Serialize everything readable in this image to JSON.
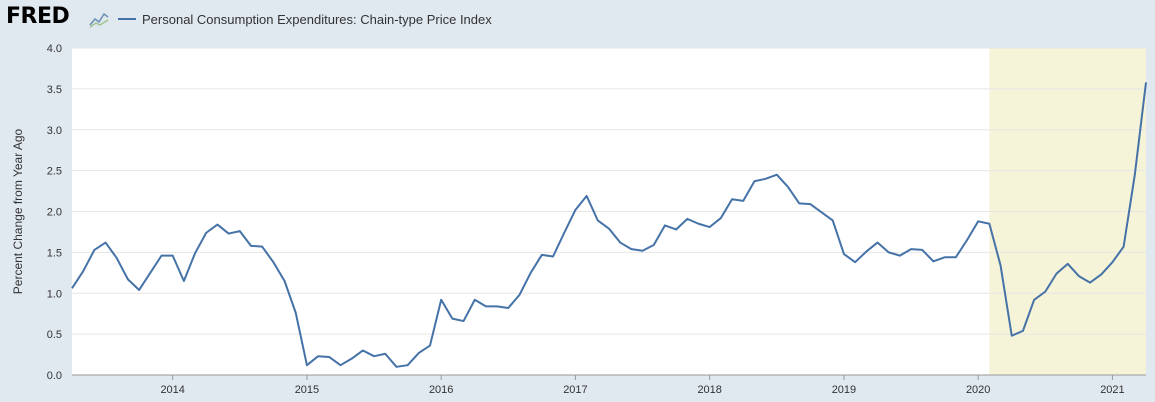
{
  "header": {
    "logo_text": "FRED",
    "logo_icon": "line-chart-icon"
  },
  "chart_data": {
    "type": "line",
    "title": "",
    "series": [
      {
        "name": "Personal Consumption Expenditures: Chain-type Price Index",
        "color": "#4572a7",
        "points": [
          [
            "2013-04",
            1.06
          ],
          [
            "2013-05",
            1.27
          ],
          [
            "2013-06",
            1.53
          ],
          [
            "2013-07",
            1.62
          ],
          [
            "2013-08",
            1.43
          ],
          [
            "2013-09",
            1.17
          ],
          [
            "2013-10",
            1.04
          ],
          [
            "2013-11",
            1.25
          ],
          [
            "2013-12",
            1.46
          ],
          [
            "2014-01",
            1.46
          ],
          [
            "2014-02",
            1.15
          ],
          [
            "2014-03",
            1.49
          ],
          [
            "2014-04",
            1.74
          ],
          [
            "2014-05",
            1.84
          ],
          [
            "2014-06",
            1.73
          ],
          [
            "2014-07",
            1.76
          ],
          [
            "2014-08",
            1.58
          ],
          [
            "2014-09",
            1.57
          ],
          [
            "2014-10",
            1.38
          ],
          [
            "2014-11",
            1.15
          ],
          [
            "2014-12",
            0.76
          ],
          [
            "2015-01",
            0.12
          ],
          [
            "2015-02",
            0.23
          ],
          [
            "2015-03",
            0.22
          ],
          [
            "2015-04",
            0.12
          ],
          [
            "2015-05",
            0.2
          ],
          [
            "2015-06",
            0.3
          ],
          [
            "2015-07",
            0.23
          ],
          [
            "2015-08",
            0.26
          ],
          [
            "2015-09",
            0.1
          ],
          [
            "2015-10",
            0.12
          ],
          [
            "2015-11",
            0.27
          ],
          [
            "2015-12",
            0.36
          ],
          [
            "2016-01",
            0.92
          ],
          [
            "2016-02",
            0.69
          ],
          [
            "2016-03",
            0.66
          ],
          [
            "2016-04",
            0.92
          ],
          [
            "2016-05",
            0.84
          ],
          [
            "2016-06",
            0.84
          ],
          [
            "2016-07",
            0.82
          ],
          [
            "2016-08",
            0.98
          ],
          [
            "2016-09",
            1.25
          ],
          [
            "2016-10",
            1.47
          ],
          [
            "2016-11",
            1.45
          ],
          [
            "2016-12",
            1.74
          ],
          [
            "2017-01",
            2.02
          ],
          [
            "2017-02",
            2.19
          ],
          [
            "2017-03",
            1.89
          ],
          [
            "2017-04",
            1.79
          ],
          [
            "2017-05",
            1.62
          ],
          [
            "2017-06",
            1.54
          ],
          [
            "2017-07",
            1.52
          ],
          [
            "2017-08",
            1.59
          ],
          [
            "2017-09",
            1.83
          ],
          [
            "2017-10",
            1.78
          ],
          [
            "2017-11",
            1.91
          ],
          [
            "2017-12",
            1.85
          ],
          [
            "2018-01",
            1.81
          ],
          [
            "2018-02",
            1.92
          ],
          [
            "2018-03",
            2.15
          ],
          [
            "2018-04",
            2.13
          ],
          [
            "2018-05",
            2.37
          ],
          [
            "2018-06",
            2.4
          ],
          [
            "2018-07",
            2.45
          ],
          [
            "2018-08",
            2.3
          ],
          [
            "2018-09",
            2.1
          ],
          [
            "2018-10",
            2.09
          ],
          [
            "2018-11",
            1.99
          ],
          [
            "2018-12",
            1.89
          ],
          [
            "2019-01",
            1.48
          ],
          [
            "2019-02",
            1.38
          ],
          [
            "2019-03",
            1.51
          ],
          [
            "2019-04",
            1.62
          ],
          [
            "2019-05",
            1.5
          ],
          [
            "2019-06",
            1.46
          ],
          [
            "2019-07",
            1.54
          ],
          [
            "2019-08",
            1.53
          ],
          [
            "2019-09",
            1.39
          ],
          [
            "2019-10",
            1.44
          ],
          [
            "2019-11",
            1.44
          ],
          [
            "2019-12",
            1.65
          ],
          [
            "2020-01",
            1.88
          ],
          [
            "2020-02",
            1.85
          ],
          [
            "2020-03",
            1.34
          ],
          [
            "2020-04",
            0.48
          ],
          [
            "2020-05",
            0.54
          ],
          [
            "2020-06",
            0.92
          ],
          [
            "2020-07",
            1.02
          ],
          [
            "2020-08",
            1.24
          ],
          [
            "2020-09",
            1.36
          ],
          [
            "2020-10",
            1.21
          ],
          [
            "2020-11",
            1.13
          ],
          [
            "2020-12",
            1.23
          ],
          [
            "2021-01",
            1.38
          ],
          [
            "2021-02",
            1.57
          ],
          [
            "2021-03",
            2.45
          ],
          [
            "2021-04",
            3.58
          ]
        ]
      }
    ],
    "recession": {
      "start": "2020-02",
      "end": "2021-04",
      "color": "#f5f3d8"
    },
    "xlabel": "",
    "ylabel": "Percent Change from Year Ago",
    "xlim": [
      "2013-04",
      "2021-04"
    ],
    "ylim": [
      0,
      4
    ],
    "yticks": [
      "0.0",
      "0.5",
      "1.0",
      "1.5",
      "2.0",
      "2.5",
      "3.0",
      "3.5",
      "4.0"
    ],
    "xticks": [
      "2014",
      "2015",
      "2016",
      "2017",
      "2018",
      "2019",
      "2020",
      "2021"
    ],
    "grid": true,
    "legend_position": "top-left"
  }
}
